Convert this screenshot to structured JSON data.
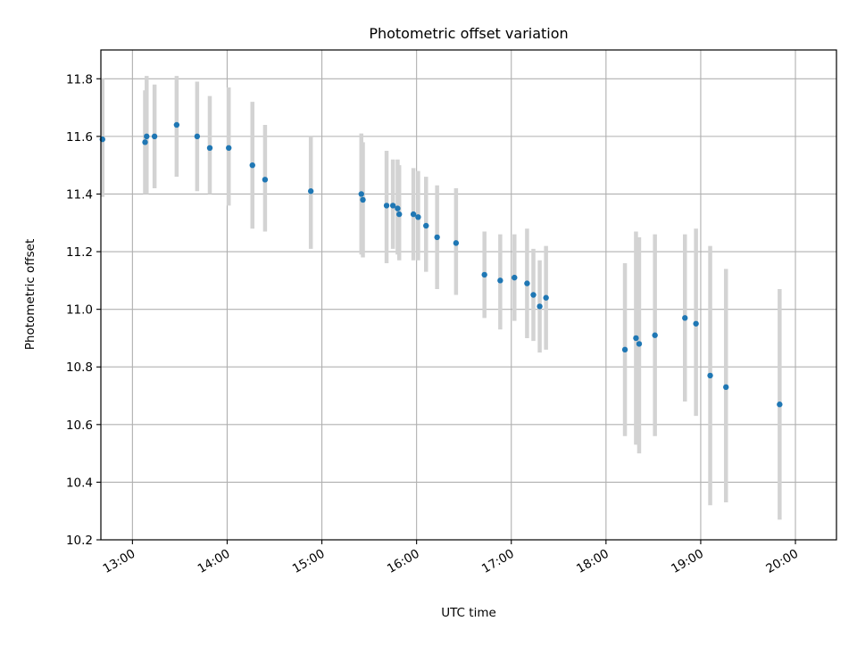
{
  "chart_data": {
    "type": "scatter",
    "title": "Photometric offset variation",
    "xlabel": "UTC time",
    "ylabel": "Photometric offset",
    "x_unit": "UTC time (HH:MM)",
    "xlim": [
      "12:40",
      "20:26"
    ],
    "ylim": [
      10.2,
      11.9
    ],
    "x_ticks": [
      "13:00",
      "14:00",
      "15:00",
      "16:00",
      "17:00",
      "18:00",
      "19:00",
      "20:00"
    ],
    "y_ticks": [
      "10.2",
      "10.4",
      "10.6",
      "10.8",
      "11.0",
      "11.2",
      "11.4",
      "11.6",
      "11.8"
    ],
    "grid": true,
    "legend": "none",
    "colors": {
      "points": "#1f77b4",
      "error_bars": "#d3d3d3",
      "grid": "#b0b0b0"
    },
    "points": [
      {
        "x": "12:41",
        "y": 11.59,
        "lo": 11.39,
        "hi": 11.8
      },
      {
        "x": "13:08",
        "y": 11.58,
        "lo": 11.4,
        "hi": 11.76
      },
      {
        "x": "13:09",
        "y": 11.6,
        "lo": 11.4,
        "hi": 11.81
      },
      {
        "x": "13:14",
        "y": 11.6,
        "lo": 11.42,
        "hi": 11.78
      },
      {
        "x": "13:28",
        "y": 11.64,
        "lo": 11.46,
        "hi": 11.81
      },
      {
        "x": "13:41",
        "y": 11.6,
        "lo": 11.41,
        "hi": 11.79
      },
      {
        "x": "13:49",
        "y": 11.56,
        "lo": 11.4,
        "hi": 11.74
      },
      {
        "x": "14:01",
        "y": 11.56,
        "lo": 11.36,
        "hi": 11.77
      },
      {
        "x": "14:16",
        "y": 11.5,
        "lo": 11.28,
        "hi": 11.72
      },
      {
        "x": "14:24",
        "y": 11.45,
        "lo": 11.27,
        "hi": 11.64
      },
      {
        "x": "14:53",
        "y": 11.41,
        "lo": 11.21,
        "hi": 11.6
      },
      {
        "x": "15:25",
        "y": 11.4,
        "lo": 11.19,
        "hi": 11.61
      },
      {
        "x": "15:26",
        "y": 11.38,
        "lo": 11.18,
        "hi": 11.58
      },
      {
        "x": "15:41",
        "y": 11.36,
        "lo": 11.16,
        "hi": 11.55
      },
      {
        "x": "15:45",
        "y": 11.36,
        "lo": 11.21,
        "hi": 11.52
      },
      {
        "x": "15:48",
        "y": 11.35,
        "lo": 11.19,
        "hi": 11.52
      },
      {
        "x": "15:49",
        "y": 11.33,
        "lo": 11.17,
        "hi": 11.5
      },
      {
        "x": "15:58",
        "y": 11.33,
        "lo": 11.17,
        "hi": 11.49
      },
      {
        "x": "16:01",
        "y": 11.32,
        "lo": 11.17,
        "hi": 11.48
      },
      {
        "x": "16:06",
        "y": 11.29,
        "lo": 11.13,
        "hi": 11.46
      },
      {
        "x": "16:13",
        "y": 11.25,
        "lo": 11.07,
        "hi": 11.43
      },
      {
        "x": "16:25",
        "y": 11.23,
        "lo": 11.05,
        "hi": 11.42
      },
      {
        "x": "16:43",
        "y": 11.12,
        "lo": 10.97,
        "hi": 11.27
      },
      {
        "x": "16:53",
        "y": 11.1,
        "lo": 10.93,
        "hi": 11.26
      },
      {
        "x": "17:02",
        "y": 11.11,
        "lo": 10.96,
        "hi": 11.26
      },
      {
        "x": "17:10",
        "y": 11.09,
        "lo": 10.9,
        "hi": 11.28
      },
      {
        "x": "17:14",
        "y": 11.05,
        "lo": 10.89,
        "hi": 11.21
      },
      {
        "x": "17:18",
        "y": 11.01,
        "lo": 10.85,
        "hi": 11.17
      },
      {
        "x": "17:22",
        "y": 11.04,
        "lo": 10.86,
        "hi": 11.22
      },
      {
        "x": "18:12",
        "y": 10.86,
        "lo": 10.56,
        "hi": 11.16
      },
      {
        "x": "18:19",
        "y": 10.9,
        "lo": 10.53,
        "hi": 11.27
      },
      {
        "x": "18:21",
        "y": 10.88,
        "lo": 10.5,
        "hi": 11.25
      },
      {
        "x": "18:31",
        "y": 10.91,
        "lo": 10.56,
        "hi": 11.26
      },
      {
        "x": "18:50",
        "y": 10.97,
        "lo": 10.68,
        "hi": 11.26
      },
      {
        "x": "18:57",
        "y": 10.95,
        "lo": 10.63,
        "hi": 11.28
      },
      {
        "x": "19:06",
        "y": 10.77,
        "lo": 10.32,
        "hi": 11.22
      },
      {
        "x": "19:16",
        "y": 10.73,
        "lo": 10.33,
        "hi": 11.14
      },
      {
        "x": "19:50",
        "y": 10.67,
        "lo": 10.27,
        "hi": 11.07
      }
    ]
  }
}
